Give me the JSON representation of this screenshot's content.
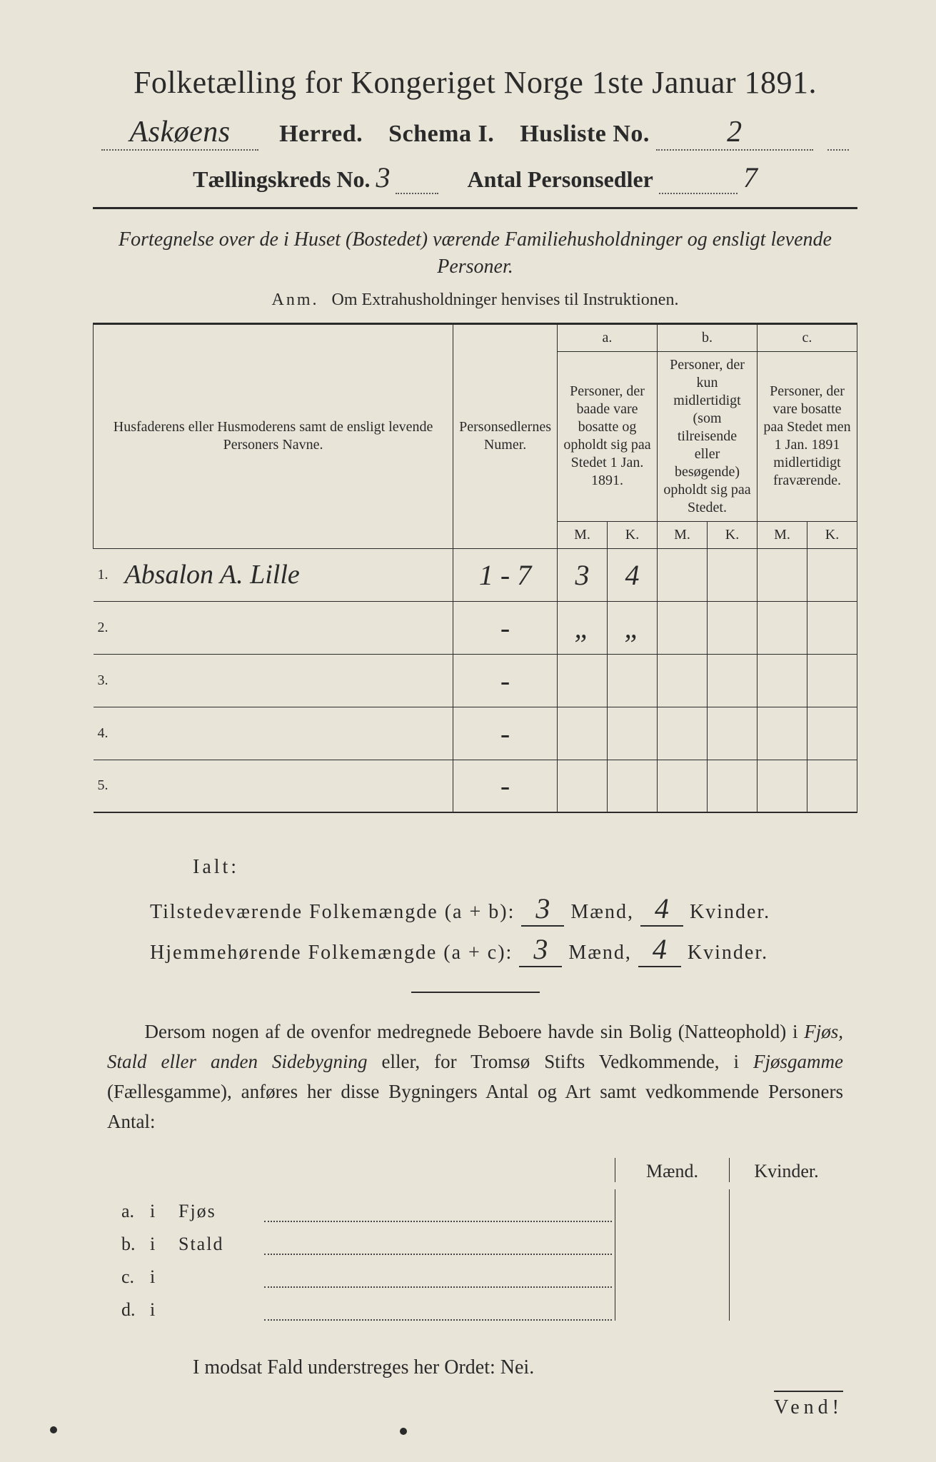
{
  "header": {
    "title": "Folketælling for Kongeriget Norge 1ste Januar 1891.",
    "herred_value": "Askøens",
    "herred_label": "Herred.",
    "schema_label": "Schema I.",
    "husliste_label": "Husliste No.",
    "husliste_value": "2",
    "kreds_label": "Tællingskreds No.",
    "kreds_value": "3",
    "antal_label": "Antal Personsedler",
    "antal_value": "7"
  },
  "subtitle": "Fortegnelse over de i Huset (Bostedet) værende Familiehusholdninger og ensligt levende Personer.",
  "anm_label": "Anm.",
  "anm_text": "Om Extrahusholdninger henvises til Instruktionen.",
  "table": {
    "names_header": "Husfaderens eller Husmoderens samt de ensligt levende Personers Navne.",
    "personsedler_header": "Personsedlernes Numer.",
    "col_a_label": "a.",
    "col_a_text": "Personer, der baade vare bosatte og opholdt sig paa Stedet 1 Jan. 1891.",
    "col_b_label": "b.",
    "col_b_text": "Personer, der kun midlertidigt (som tilreisende eller besøgende) opholdt sig paa Stedet.",
    "col_c_label": "c.",
    "col_c_text": "Personer, der vare bosatte paa Stedet men 1 Jan. 1891 midlertidigt fraværende.",
    "m_label": "M.",
    "k_label": "K.",
    "rows": [
      {
        "n": "1.",
        "name": "Absalon A. Lille",
        "ps": "1 - 7",
        "am": "3",
        "ak": "4",
        "bm": "",
        "bk": "",
        "cm": "",
        "ck": ""
      },
      {
        "n": "2.",
        "name": "",
        "ps": "-",
        "am": "„",
        "ak": "„",
        "bm": "",
        "bk": "",
        "cm": "",
        "ck": ""
      },
      {
        "n": "3.",
        "name": "",
        "ps": "-",
        "am": "",
        "ak": "",
        "bm": "",
        "bk": "",
        "cm": "",
        "ck": ""
      },
      {
        "n": "4.",
        "name": "",
        "ps": "-",
        "am": "",
        "ak": "",
        "bm": "",
        "bk": "",
        "cm": "",
        "ck": ""
      },
      {
        "n": "5.",
        "name": "",
        "ps": "-",
        "am": "",
        "ak": "",
        "bm": "",
        "bk": "",
        "cm": "",
        "ck": ""
      }
    ]
  },
  "ialt": "Ialt:",
  "sum1": {
    "label": "Tilstedeværende Folkemængde (a + b):",
    "m": "3",
    "m_label": "Mænd,",
    "k": "4",
    "k_label": "Kvinder."
  },
  "sum2": {
    "label": "Hjemmehørende Folkemængde (a + c):",
    "m": "3",
    "m_label": "Mænd,",
    "k": "4",
    "k_label": "Kvinder."
  },
  "para": "Dersom nogen af de ovenfor medregnede Beboere havde sin Bolig (Natteophold) i Fjøs, Stald eller anden Sidebygning eller, for Tromsø Stifts Vedkommende, i Fjøsgamme (Fællesgamme), anføres her disse Bygningers Antal og Art samt vedkommende Personers Antal:",
  "outbuild": {
    "m_header": "Mænd.",
    "k_header": "Kvinder.",
    "rows": [
      {
        "l": "a.",
        "i": "i",
        "t": "Fjøs"
      },
      {
        "l": "b.",
        "i": "i",
        "t": "Stald"
      },
      {
        "l": "c.",
        "i": "i",
        "t": ""
      },
      {
        "l": "d.",
        "i": "i",
        "t": ""
      }
    ]
  },
  "nei": "I modsat Fald understreges her Ordet: Nei.",
  "vend": "Vend!",
  "colors": {
    "paper": "#e8e4d8",
    "ink": "#2a2a2a",
    "bg": "#1a1a1a"
  }
}
